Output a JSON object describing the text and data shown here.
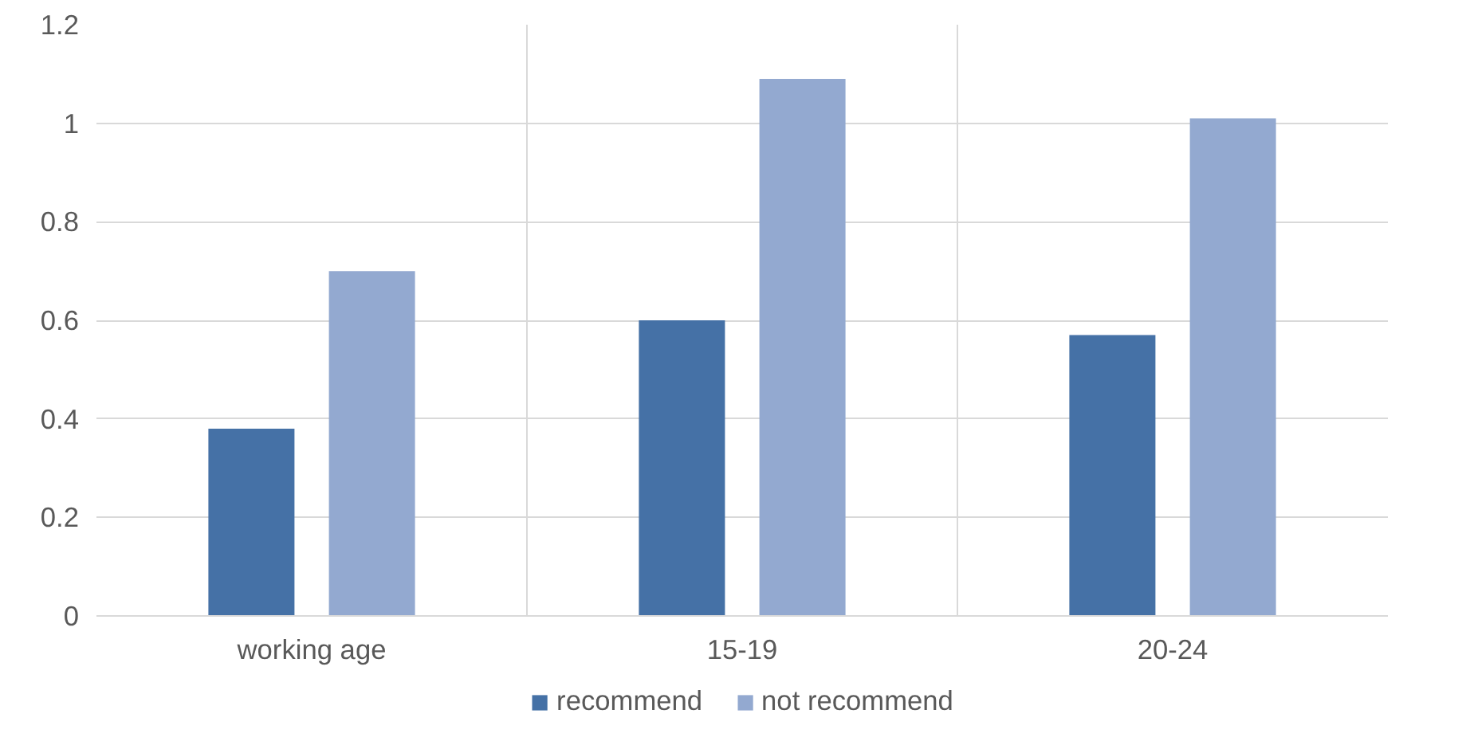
{
  "chart_data": {
    "type": "bar",
    "categories": [
      "working age",
      "15-19",
      "20-24"
    ],
    "series": [
      {
        "name": "recommend",
        "color": "#4571a6",
        "values": [
          0.38,
          0.6,
          0.57
        ]
      },
      {
        "name": "not recommend",
        "color": "#93a9d0",
        "values": [
          0.7,
          1.09,
          1.01
        ]
      }
    ],
    "ylim": [
      0,
      1.2
    ],
    "yticks": [
      0,
      0.2,
      0.4,
      0.6,
      0.8,
      1,
      1.2
    ],
    "grid": true,
    "legend": "bottom"
  }
}
